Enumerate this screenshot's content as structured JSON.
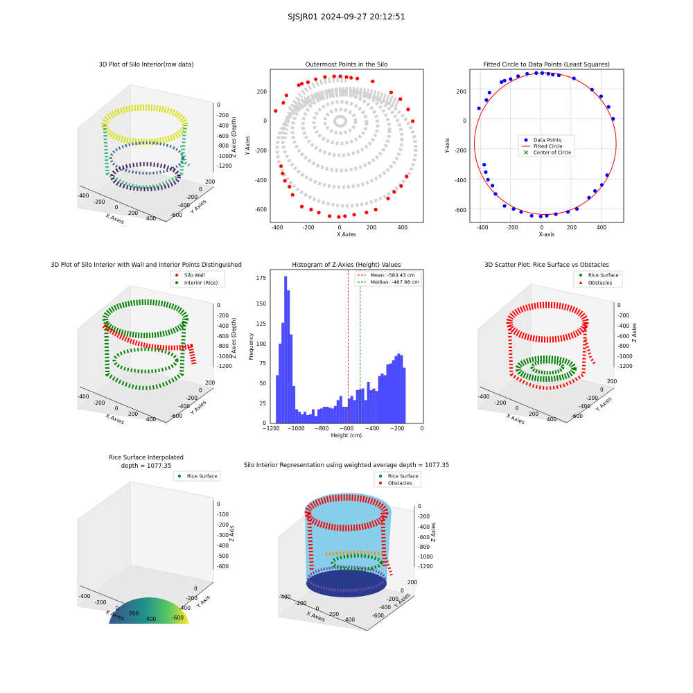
{
  "suptitle": "SJSJR01 2024-09-27 20:12:51",
  "panels": {
    "p1": {
      "title": "3D Plot of Silo Interior(row data)",
      "xlabel": "X Axies",
      "ylabel": "Y Axies",
      "zlabel": "Z Axies (Depth)",
      "xticks": [
        "-400",
        "-200",
        "0",
        "200",
        "400"
      ],
      "yticks": [
        "200",
        "0",
        "-200",
        "-400",
        "-600"
      ],
      "zticks": [
        "0",
        "-200",
        "-400",
        "-600",
        "-800",
        "-1000",
        "-1200"
      ]
    },
    "p2": {
      "title": "Outermost Points in the Silo",
      "xlabel": "X Axies",
      "ylabel": "Y Axies",
      "xticks": [
        "-400",
        "-200",
        "0",
        "200",
        "400"
      ],
      "yticks": [
        "200",
        "0",
        "-200",
        "-400",
        "-600"
      ]
    },
    "p3": {
      "title": "Fitted Circle to Data Points (Least Squares)",
      "xlabel": "X-axis",
      "ylabel": "Y-axis",
      "xticks": [
        "-400",
        "-200",
        "0",
        "200",
        "400"
      ],
      "yticks": [
        "200",
        "0",
        "-200",
        "-400",
        "-600"
      ],
      "legend": [
        "Data Points",
        "Fitted Circle",
        "Center of Circle"
      ]
    },
    "p4": {
      "title": "3D Plot of Silo Interior with Wall and Interior Points Distinguished",
      "xlabel": "X Axies",
      "ylabel": "Y Axies",
      "zlabel": "Z Axies (Depth)",
      "xticks": [
        "-400",
        "-200",
        "0",
        "200",
        "400"
      ],
      "yticks": [
        "200",
        "0",
        "-200",
        "-400",
        "-600"
      ],
      "zticks": [
        "0",
        "-200",
        "-400",
        "-600",
        "-800",
        "-1000",
        "-1200"
      ],
      "legend": [
        "Silo Wall",
        "Interior (Rice)"
      ]
    },
    "p5": {
      "title": "Histogram of Z-Axies (Height) Values",
      "xlabel": "Height (cm)",
      "ylabel": "Frequency",
      "xticks": [
        "−1200",
        "−1000",
        "−800",
        "−600",
        "−400",
        "−200",
        "0"
      ],
      "yticks": [
        "0",
        "25",
        "50",
        "75",
        "100",
        "125",
        "150",
        "175"
      ],
      "legend": [
        "Mean: -583.43 cm",
        "Median: -487.88 cm"
      ]
    },
    "p6": {
      "title": "3D Scatter Plot: Rice Surface vs Obstacles",
      "xlabel": "X Axies",
      "ylabel": "Y Axies",
      "zlabel": "Z Axies",
      "xticks": [
        "-400",
        "-200",
        "0",
        "200",
        "400"
      ],
      "yticks": [
        "200",
        "0",
        "-200",
        "-400",
        "-600"
      ],
      "zticks": [
        "0",
        "-200",
        "-400",
        "-600",
        "-800",
        "-1000",
        "-1200"
      ],
      "legend": [
        "Rice Surface",
        "Obstacles"
      ]
    },
    "p7": {
      "title_line1": "Rice Surface Interpolated",
      "title_line2": "depth = 1077.35",
      "xlabel": "X Axies",
      "ylabel": "Y Axis",
      "zlabel": "Z Axis",
      "xticks": [
        "-400",
        "-200",
        "0",
        "200",
        "400"
      ],
      "yticks": [
        "0",
        "-200",
        "-400",
        "-600"
      ],
      "zticks": [
        "0",
        "-100",
        "-200",
        "-300",
        "-400",
        "-500",
        "-600"
      ],
      "legend": [
        "Rice Surface"
      ]
    },
    "p8": {
      "title": "Silo Interior Representation using weighted average depth = 1077.35",
      "xlabel": "X Axies",
      "ylabel": "Y Axies",
      "zlabel": "Z Axies",
      "xticks": [
        "-400",
        "-200",
        "0",
        "200",
        "400"
      ],
      "yticks": [
        "200",
        "0",
        "-200",
        "-400",
        "-600"
      ],
      "zticks": [
        "0",
        "-200",
        "-400",
        "-600",
        "-800",
        "-1000",
        "-1200"
      ],
      "legend": [
        "Rice Surface",
        "Obstacles"
      ]
    }
  },
  "colors": {
    "blue": "#0000ff",
    "red": "#ff0000",
    "green": "#008000",
    "gray": "#d3d3d3",
    "hist": "#4a4aff",
    "silo_fill": "#87ceeb",
    "pane": "#f2f2f2",
    "grid": "#cccccc"
  },
  "chart_data": [
    {
      "type": "scatter",
      "title": "Outermost Points in the Silo",
      "xlabel": "X Axies",
      "ylabel": "Y Axies",
      "xlim": [
        -400,
        500
      ],
      "ylim": [
        -650,
        310
      ],
      "series": [
        {
          "points": [
            [
              -410,
              70
            ],
            [
              -360,
              125
            ],
            [
              -340,
              175
            ],
            [
              -260,
              245
            ],
            [
              -240,
              255
            ],
            [
              -200,
              265
            ],
            [
              -150,
              285
            ],
            [
              -90,
              300
            ],
            [
              -30,
              305
            ],
            [
              10,
              305
            ],
            [
              50,
              300
            ],
            [
              80,
              295
            ],
            [
              120,
              290
            ],
            [
              220,
              270
            ],
            [
              340,
              195
            ],
            [
              400,
              150
            ],
            [
              450,
              80
            ],
            [
              480,
              0
            ],
            [
              440,
              -375
            ],
            [
              405,
              -440
            ],
            [
              360,
              -480
            ],
            [
              320,
              -525
            ],
            [
              240,
              -600
            ],
            [
              180,
              -620
            ],
            [
              100,
              -635
            ],
            [
              40,
              -645
            ],
            [
              0,
              -650
            ],
            [
              -60,
              -645
            ],
            [
              -130,
              -620
            ],
            [
              -180,
              -600
            ],
            [
              -240,
              -580
            ],
            [
              -300,
              -500
            ],
            [
              -320,
              -445
            ],
            [
              -350,
              -405
            ],
            [
              -365,
              -355
            ],
            [
              -375,
              -305
            ]
          ]
        }
      ]
    },
    {
      "type": "scatter",
      "title": "Fitted Circle to Data Points (Least Squares)",
      "xlabel": "X-axis",
      "ylabel": "Y-axis",
      "xlim": [
        -470,
        550
      ],
      "ylim": [
        -690,
        330
      ],
      "series": [
        {
          "name": "Data Points",
          "points": [
            [
              -410,
              70
            ],
            [
              -360,
              125
            ],
            [
              -340,
              175
            ],
            [
              -260,
              245
            ],
            [
              -240,
              255
            ],
            [
              -200,
              265
            ],
            [
              -150,
              285
            ],
            [
              -90,
              300
            ],
            [
              -30,
              305
            ],
            [
              10,
              305
            ],
            [
              50,
              300
            ],
            [
              80,
              295
            ],
            [
              120,
              290
            ],
            [
              220,
              270
            ],
            [
              340,
              195
            ],
            [
              400,
              150
            ],
            [
              450,
              80
            ],
            [
              480,
              0
            ],
            [
              440,
              -375
            ],
            [
              405,
              -440
            ],
            [
              360,
              -480
            ],
            [
              320,
              -525
            ],
            [
              240,
              -600
            ],
            [
              180,
              -620
            ],
            [
              100,
              -635
            ],
            [
              40,
              -645
            ],
            [
              0,
              -650
            ],
            [
              -60,
              -645
            ],
            [
              -130,
              -620
            ],
            [
              -180,
              -600
            ],
            [
              -240,
              -580
            ],
            [
              -300,
              -500
            ],
            [
              -320,
              -445
            ],
            [
              -350,
              -405
            ],
            [
              -365,
              -355
            ],
            [
              -375,
              -305
            ]
          ]
        },
        {
          "name": "Fitted Circle",
          "center": [
            30,
            -165
          ],
          "radius": 470
        },
        {
          "name": "Center of Circle",
          "points": [
            [
              30,
              -165
            ]
          ]
        }
      ]
    },
    {
      "type": "bar",
      "title": "Histogram of Z-Axies (Height) Values",
      "xlabel": "Height (cm)",
      "ylabel": "Frequency",
      "bin_start": -1160,
      "bin_width": 22,
      "xlim": [
        -1200,
        10
      ],
      "ylim": [
        0,
        185
      ],
      "values": [
        58,
        96,
        121,
        177,
        160,
        107,
        45,
        17,
        14,
        11,
        14,
        10,
        11,
        17,
        9,
        17,
        18,
        20,
        20,
        19,
        18,
        21,
        28,
        33,
        20,
        20,
        30,
        33,
        28,
        40,
        41,
        42,
        28,
        50,
        40,
        42,
        39,
        57,
        60,
        58,
        71,
        72,
        76,
        81,
        84,
        82,
        67
      ],
      "mean": -583.43,
      "median": -487.88
    }
  ]
}
